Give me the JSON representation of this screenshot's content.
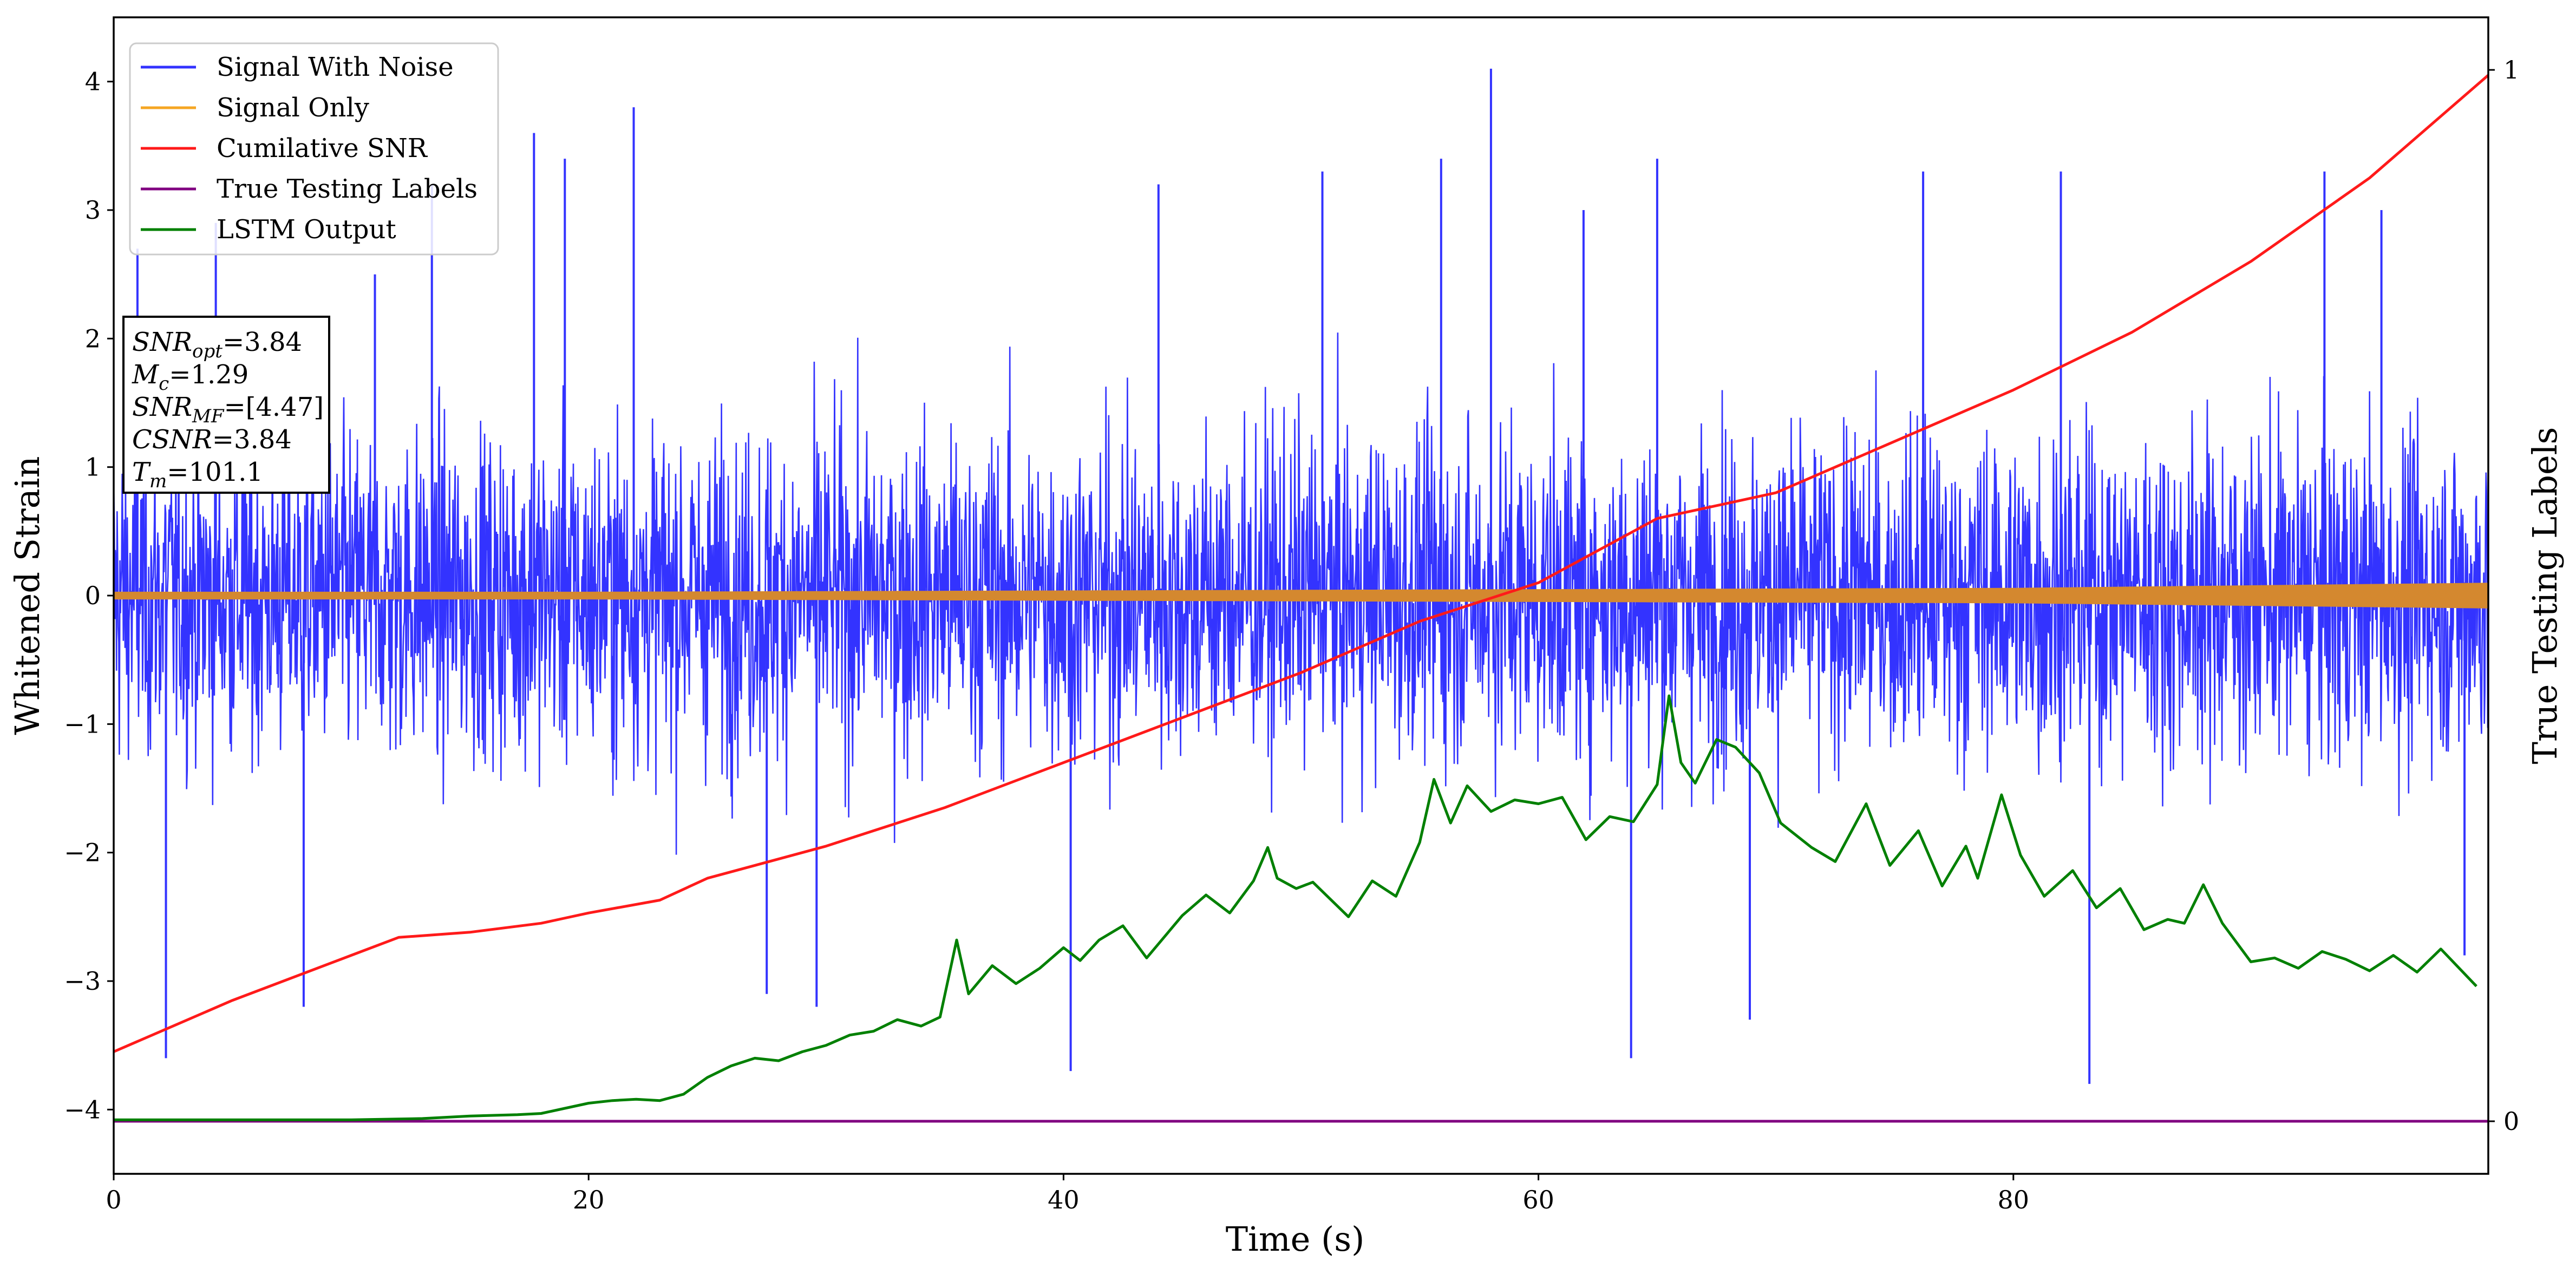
{
  "chart_data": {
    "type": "line",
    "xlabel": "Time (s)",
    "ylabel": "Whitened Strain",
    "y2label": "True Testing Labels",
    "xlim": [
      0,
      100
    ],
    "ylim": [
      -4.5,
      4.5
    ],
    "y2lim": [
      -0.05,
      1.05
    ],
    "xticks": [
      0,
      20,
      40,
      60,
      80
    ],
    "yticks": [
      4,
      3,
      2,
      1,
      0,
      -1,
      -2,
      -3,
      -4
    ],
    "y2ticks": [
      1,
      0
    ],
    "grid": false,
    "legend_position": "top-left",
    "series": [
      {
        "name": "Signal With Noise",
        "axis": "left",
        "color": "#3333ff",
        "style": "noise",
        "baseline": 0,
        "typical_amplitude": 1.2,
        "spikes": [
          {
            "x": 1.0,
            "y": 2.7
          },
          {
            "x": 2.2,
            "y": -3.6
          },
          {
            "x": 4.3,
            "y": 2.9
          },
          {
            "x": 8.0,
            "y": -3.2
          },
          {
            "x": 11.0,
            "y": 2.5
          },
          {
            "x": 13.4,
            "y": 3.2
          },
          {
            "x": 17.7,
            "y": 3.6
          },
          {
            "x": 19.0,
            "y": 3.4
          },
          {
            "x": 21.9,
            "y": 3.8
          },
          {
            "x": 27.5,
            "y": -3.1
          },
          {
            "x": 29.6,
            "y": -3.2
          },
          {
            "x": 40.3,
            "y": -3.7
          },
          {
            "x": 44.0,
            "y": 3.2
          },
          {
            "x": 50.9,
            "y": 3.3
          },
          {
            "x": 55.9,
            "y": 3.4
          },
          {
            "x": 58.0,
            "y": 4.1
          },
          {
            "x": 61.9,
            "y": 3.0
          },
          {
            "x": 63.9,
            "y": -3.6
          },
          {
            "x": 65.0,
            "y": 3.4
          },
          {
            "x": 68.9,
            "y": -3.3
          },
          {
            "x": 76.2,
            "y": 3.3
          },
          {
            "x": 82.0,
            "y": 3.3
          },
          {
            "x": 83.2,
            "y": -3.8
          },
          {
            "x": 93.1,
            "y": 3.3
          },
          {
            "x": 95.5,
            "y": 3.0
          },
          {
            "x": 99.0,
            "y": -2.8
          }
        ]
      },
      {
        "name": "Signal Only",
        "axis": "left",
        "color": "#f5a623",
        "fill_color": "#d4882f",
        "style": "band",
        "band": [
          [
            0,
            0.03
          ],
          [
            20,
            0.03
          ],
          [
            40,
            0.04
          ],
          [
            60,
            0.05
          ],
          [
            80,
            0.06
          ],
          [
            100,
            0.1
          ]
        ]
      },
      {
        "name": "Cumilative SNR",
        "axis": "left",
        "color": "#ff1a1a",
        "x": [
          0,
          5,
          10,
          12,
          15,
          18,
          20,
          23,
          25,
          30,
          35,
          40,
          45,
          50,
          55,
          60,
          65,
          70,
          75,
          80,
          85,
          90,
          95,
          100
        ],
        "y": [
          -3.55,
          -3.15,
          -2.8,
          -2.66,
          -2.62,
          -2.55,
          -2.47,
          -2.37,
          -2.2,
          -1.95,
          -1.65,
          -1.3,
          -0.95,
          -0.6,
          -0.2,
          0.1,
          0.6,
          0.8,
          1.2,
          1.6,
          2.05,
          2.6,
          3.25,
          4.05
        ]
      },
      {
        "name": "True Testing Labels",
        "axis": "right",
        "color": "#800080",
        "x": [
          0,
          100
        ],
        "y": [
          0,
          0
        ]
      },
      {
        "name": "LSTM Output",
        "axis": "left",
        "color": "#008000",
        "x": [
          0,
          10,
          13,
          15,
          17,
          18,
          19,
          20,
          21,
          22,
          23,
          24,
          25,
          26,
          27,
          28,
          29,
          30,
          31,
          32,
          33,
          34,
          34.8,
          35.5,
          36,
          37,
          38,
          39,
          40,
          40.7,
          41.5,
          42.5,
          43.5,
          45,
          46,
          47,
          48,
          48.6,
          49,
          49.8,
          50.5,
          52,
          53,
          54,
          55,
          55.6,
          56.3,
          57,
          58,
          59,
          60,
          61,
          62,
          63,
          64,
          65,
          65.5,
          66,
          66.6,
          67.5,
          68.3,
          69.3,
          70.2,
          71.5,
          72.5,
          73.8,
          74.8,
          76,
          77,
          78,
          78.5,
          79.5,
          80.3,
          81.3,
          82.5,
          83.5,
          84.5,
          85.5,
          86.5,
          87.2,
          88,
          88.8,
          90,
          91,
          92,
          93,
          94,
          95,
          96,
          97,
          98,
          99.5
        ],
        "y": [
          -4.08,
          -4.08,
          -4.07,
          -4.05,
          -4.04,
          -4.03,
          -3.99,
          -3.95,
          -3.93,
          -3.92,
          -3.93,
          -3.88,
          -3.75,
          -3.66,
          -3.6,
          -3.62,
          -3.55,
          -3.5,
          -3.42,
          -3.39,
          -3.3,
          -3.35,
          -3.28,
          -2.68,
          -3.1,
          -2.88,
          -3.02,
          -2.9,
          -2.74,
          -2.84,
          -2.68,
          -2.57,
          -2.82,
          -2.49,
          -2.33,
          -2.47,
          -2.22,
          -1.96,
          -2.2,
          -2.28,
          -2.23,
          -2.5,
          -2.22,
          -2.34,
          -1.92,
          -1.43,
          -1.77,
          -1.48,
          -1.68,
          -1.59,
          -1.62,
          -1.57,
          -1.9,
          -1.72,
          -1.76,
          -1.47,
          -0.78,
          -1.3,
          -1.46,
          -1.12,
          -1.18,
          -1.38,
          -1.77,
          -1.96,
          -2.07,
          -1.62,
          -2.1,
          -1.83,
          -2.26,
          -1.95,
          -2.2,
          -1.55,
          -2.02,
          -2.34,
          -2.14,
          -2.43,
          -2.28,
          -2.6,
          -2.52,
          -2.55,
          -2.25,
          -2.55,
          -2.85,
          -2.82,
          -2.9,
          -2.77,
          -2.83,
          -2.92,
          -2.8,
          -2.93,
          -2.75,
          -3.04
        ]
      }
    ],
    "annotation_box": {
      "lines": [
        {
          "base": "SNR",
          "sub": "opt",
          "value": "=3.84"
        },
        {
          "base": "M",
          "sub": "c",
          "value": "=1.29"
        },
        {
          "base": "SNR",
          "sub": "MF",
          "value": "=[4.47]"
        },
        {
          "base": "CSNR",
          "sub": "",
          "value": "=3.84"
        },
        {
          "base": "T",
          "sub": "m",
          "value": "=101.1"
        }
      ]
    }
  }
}
